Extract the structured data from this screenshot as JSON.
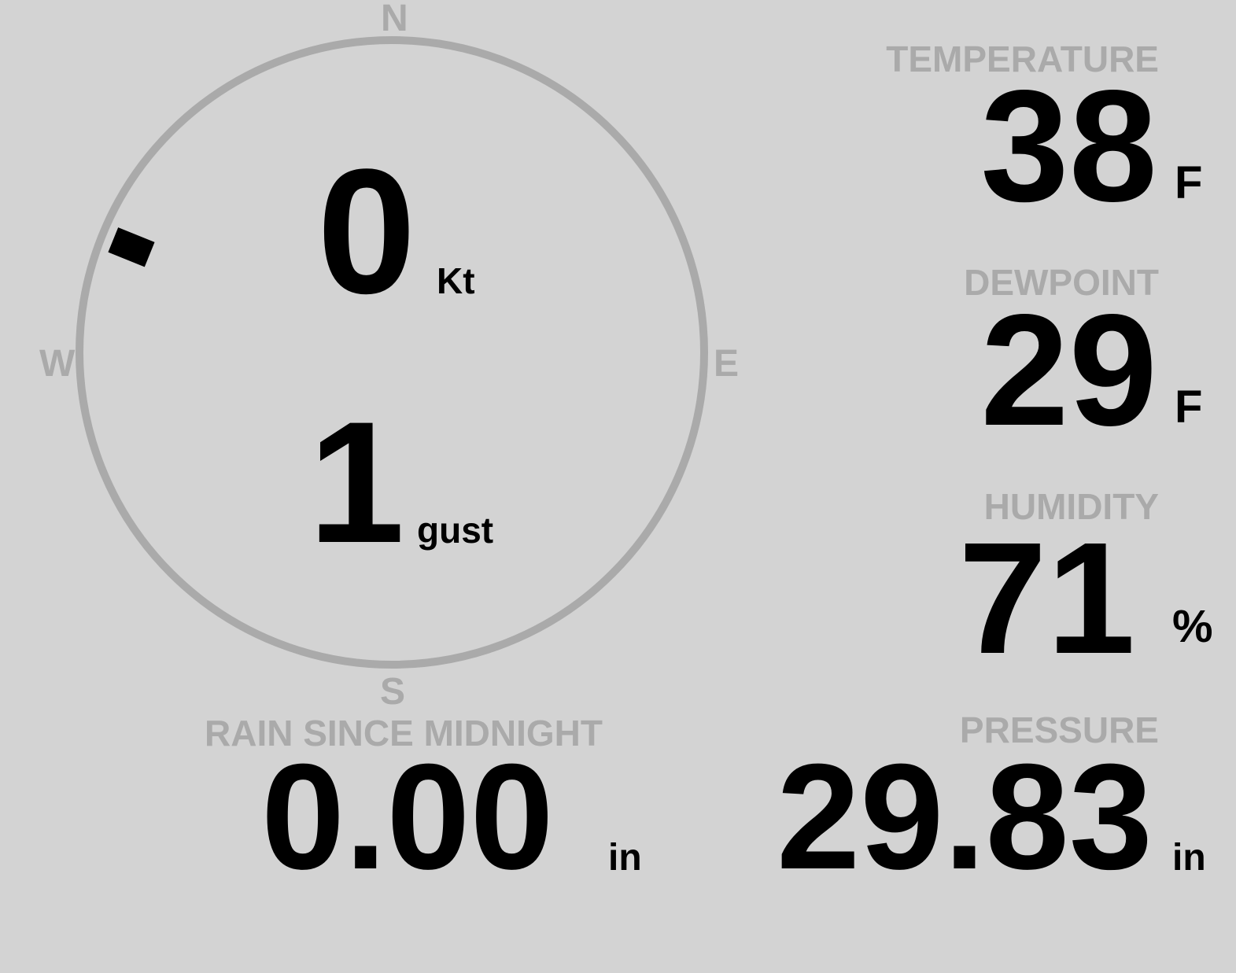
{
  "colors": {
    "background": "#d3d3d3",
    "label": "#aaaaaa",
    "value": "#000000",
    "dial": "#aaaaaa"
  },
  "wind": {
    "speed": "0",
    "speed_unit": "Kt",
    "gust": "1",
    "gust_label": "gust",
    "direction_deg": 292,
    "compass": {
      "n": "N",
      "e": "E",
      "s": "S",
      "w": "W"
    }
  },
  "temperature": {
    "label": "TEMPERATURE",
    "value": "38",
    "unit": "F"
  },
  "dewpoint": {
    "label": "DEWPOINT",
    "value": "29",
    "unit": "F"
  },
  "humidity": {
    "label": "HUMIDITY",
    "value": "71",
    "unit": "%"
  },
  "rain": {
    "label": "RAIN SINCE MIDNIGHT",
    "value": "0.00",
    "unit": "in"
  },
  "pressure": {
    "label": "PRESSURE",
    "value": "29.83",
    "unit": "in"
  }
}
